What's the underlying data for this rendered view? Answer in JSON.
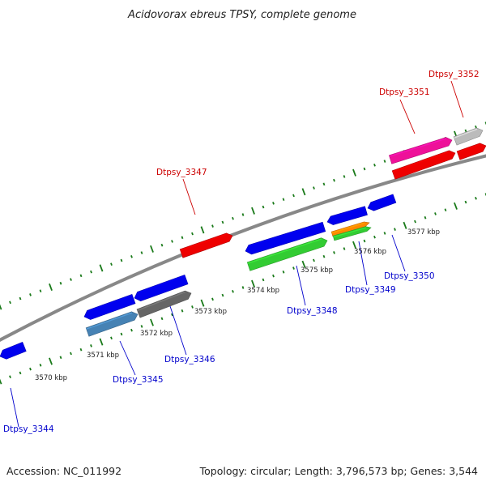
{
  "title": "Acidovorax ebreus TPSY, complete genome",
  "footer": {
    "accession": "Accession: NC_011992",
    "summary": "Topology: circular; Length: 3,796,573 bp; Genes: 3,544"
  },
  "colors": {
    "forward_label": "#cc0000",
    "reverse_label": "#0000cc",
    "backbone": "#888888",
    "tick": "#1a7a1a"
  },
  "scale_labels": [
    "3570 kbp",
    "3571 kbp",
    "3572 kbp",
    "3573 kbp",
    "3574 kbp",
    "3575 kbp",
    "3576 kbp",
    "3577 kbp"
  ],
  "genes": [
    {
      "id": "Dtpsy_3344",
      "strand": "reverse",
      "color": "#0000ee"
    },
    {
      "id": "Dtpsy_3345",
      "strand": "reverse",
      "color": "#0000ee"
    },
    {
      "id": "Dtpsy_3346",
      "strand": "reverse",
      "color": "#0000ee"
    },
    {
      "id": "Dtpsy_3347",
      "strand": "forward",
      "color": "#ee0000"
    },
    {
      "id": "Dtpsy_3348",
      "strand": "reverse",
      "color": "#0000ee"
    },
    {
      "id": "Dtpsy_3349",
      "strand": "reverse",
      "color": "#0000ee"
    },
    {
      "id": "Dtpsy_3350",
      "strand": "reverse",
      "color": "#0000ee"
    },
    {
      "id": "Dtpsy_3351",
      "strand": "forward",
      "color": "#ee0000"
    },
    {
      "id": "Dtpsy_3352",
      "strand": "forward",
      "color": "#ee0000"
    }
  ],
  "feature_colors": [
    "#4682b4",
    "#666666",
    "#33cc33",
    "#ff8800",
    "#ee1199",
    "#bbbbbb"
  ]
}
